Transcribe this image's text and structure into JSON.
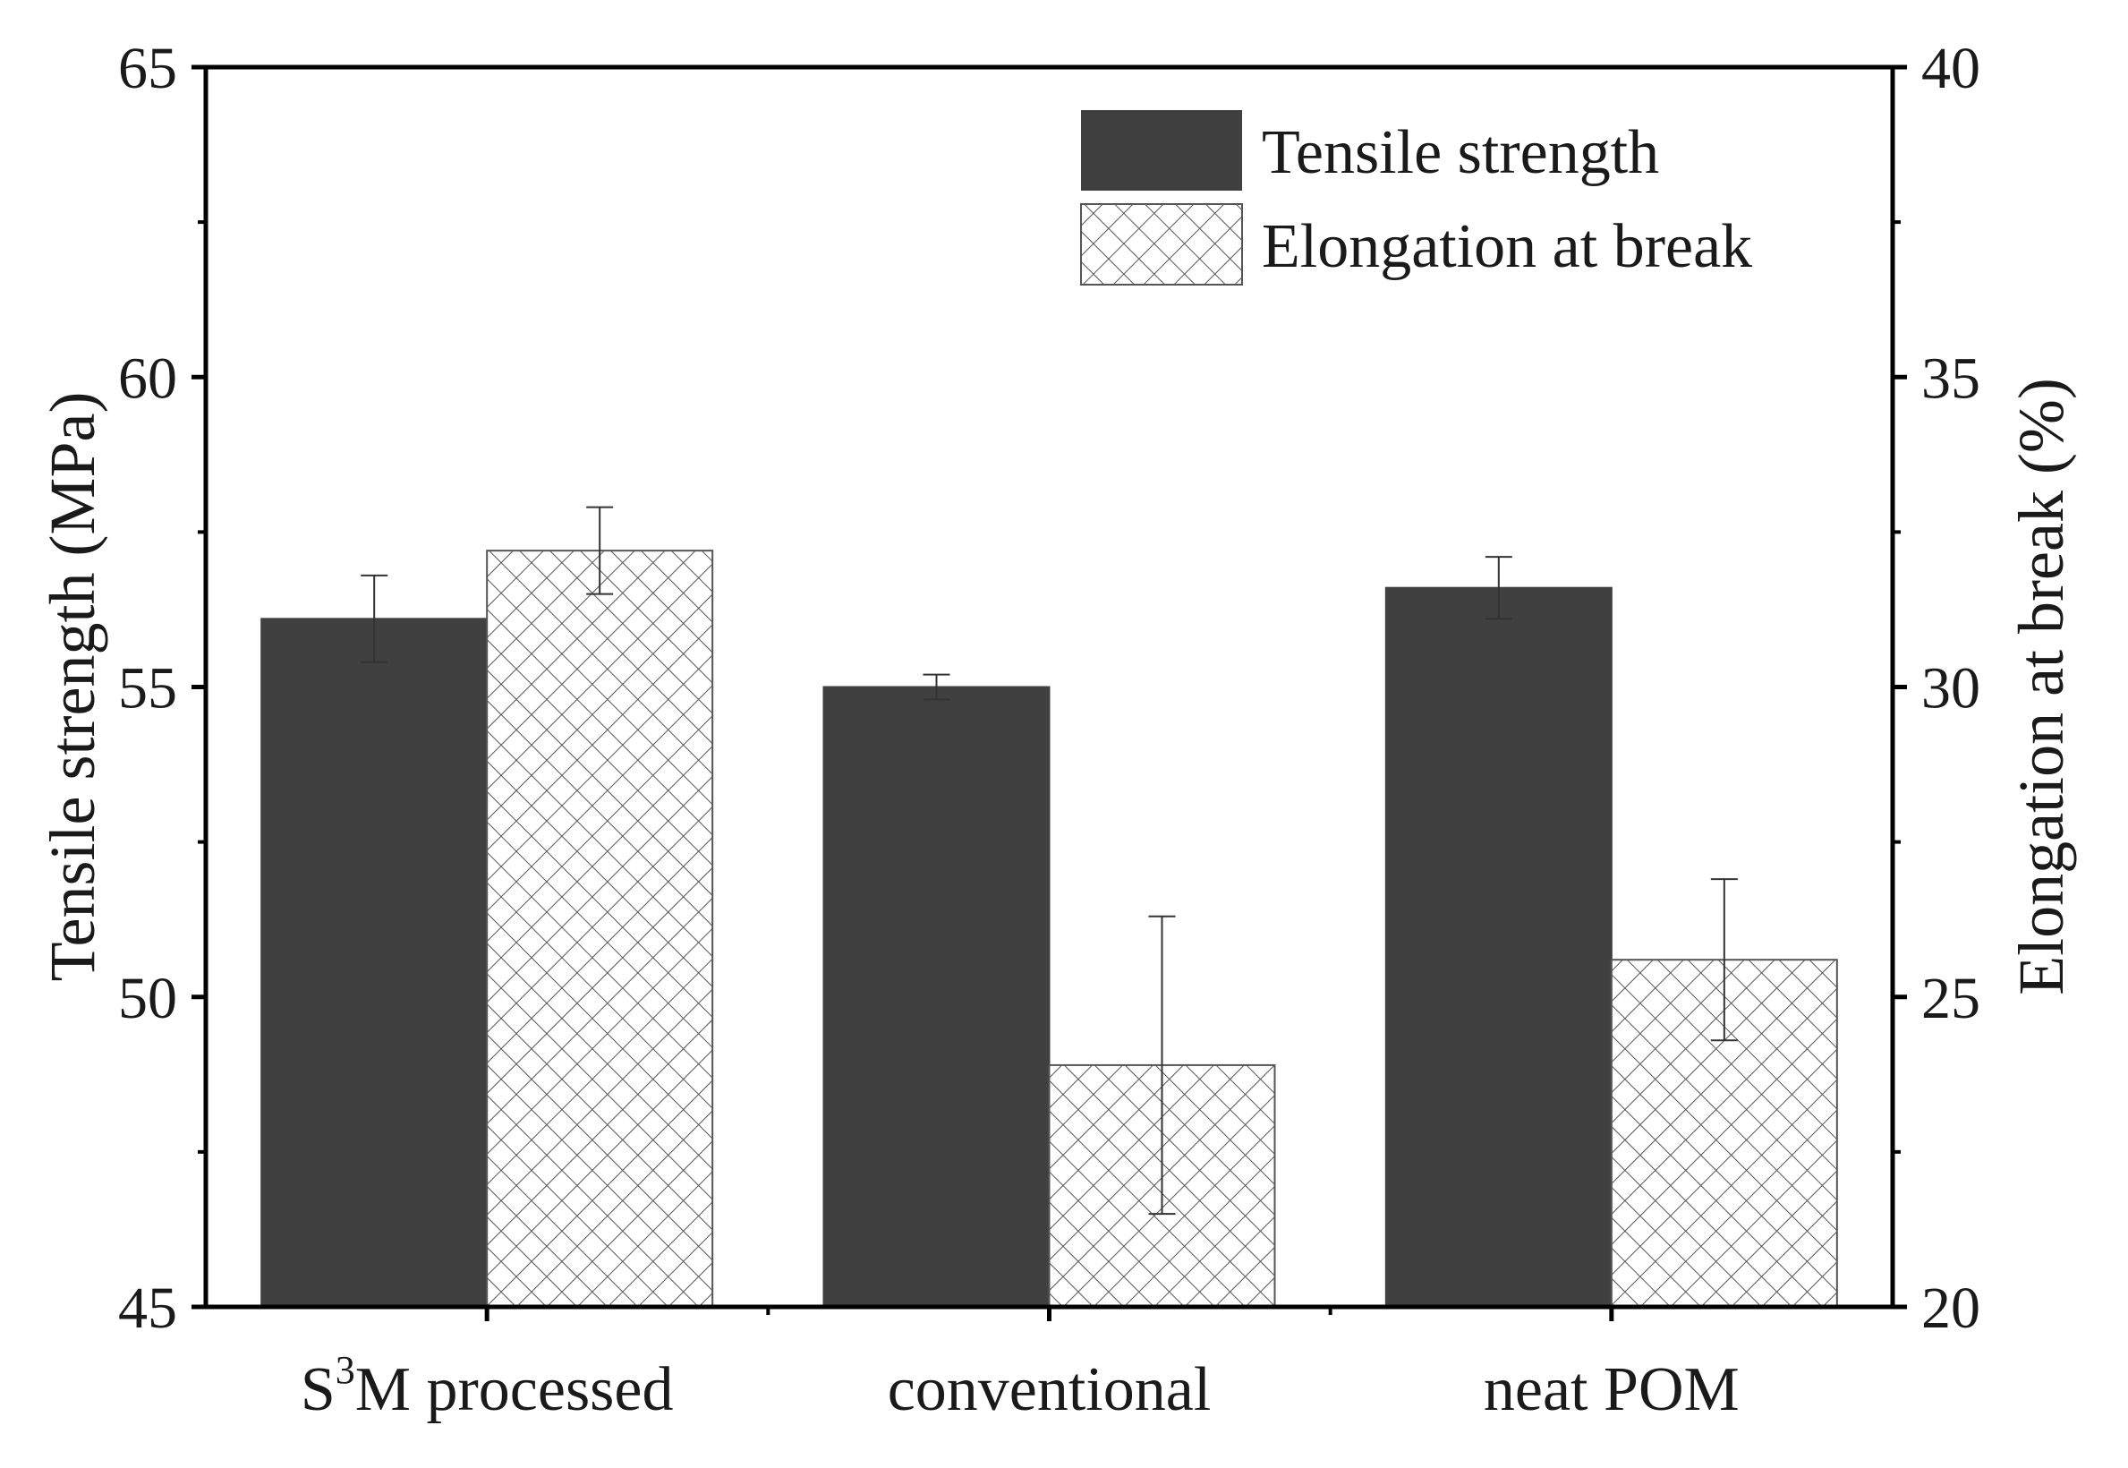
{
  "chart_data": {
    "type": "bar",
    "categories": [
      "S3M processed",
      "conventional",
      "neat POM"
    ],
    "category_label_parts": [
      {
        "base": "S",
        "sup": "3",
        "rest": "M processed"
      },
      {
        "base": "conventional",
        "sup": "",
        "rest": ""
      },
      {
        "base": "neat POM",
        "sup": "",
        "rest": ""
      }
    ],
    "series": [
      {
        "name": "Tensile strength",
        "axis": "left",
        "values": [
          56.1,
          55.0,
          56.6
        ],
        "errors": [
          0.7,
          0.2,
          0.5
        ],
        "fill": "#404040",
        "pattern": "solid"
      },
      {
        "name": "Elongation at break",
        "axis": "right",
        "values": [
          32.2,
          23.9,
          25.6
        ],
        "errors": [
          0.7,
          2.4,
          1.3
        ],
        "fill": "#ffffff",
        "pattern": "crosshatch"
      }
    ],
    "ylabel": "Tensile strength (MPa)",
    "ylabel_right": "Elongation at break (%)",
    "ylim": [
      45,
      65
    ],
    "ylim_right": [
      20,
      40
    ],
    "yticks": [
      "45",
      "50",
      "55",
      "60",
      "65"
    ],
    "yticks_right": [
      "20",
      "25",
      "30",
      "35",
      "40"
    ],
    "legend_position": "top-right",
    "grid": false
  },
  "colors": {
    "dark_bar": "#404040",
    "axis": "#000000",
    "hatch": "#555555"
  }
}
